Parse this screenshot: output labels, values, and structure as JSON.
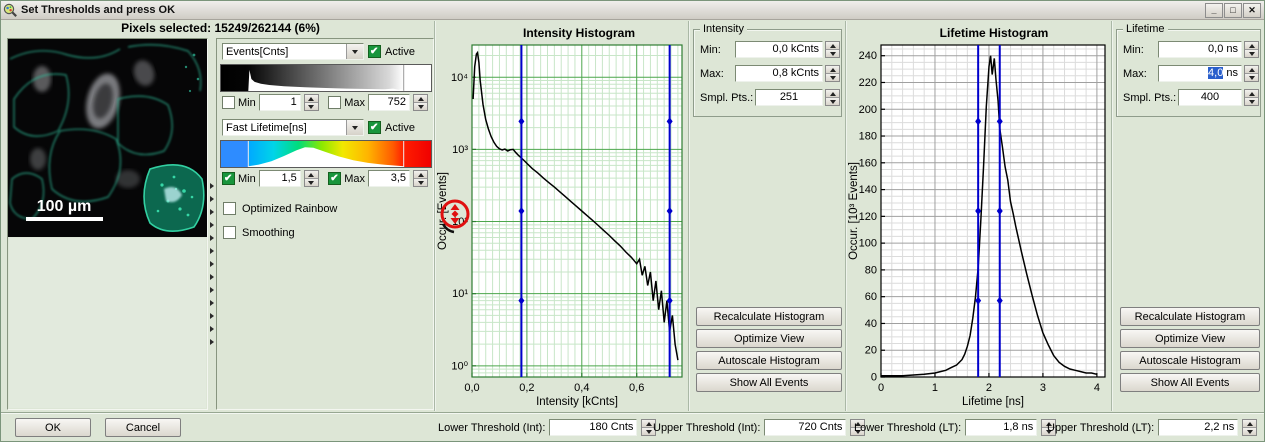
{
  "window": {
    "title": "Set Thresholds and press OK",
    "minimize_glyph": "_",
    "maximize_glyph": "□",
    "close_glyph": "✕"
  },
  "header": {
    "pixels_selected": "Pixels selected: 15249/262144 (6%)"
  },
  "image_panel": {
    "scale_bar_label": "100 µm"
  },
  "lut_controls": {
    "channel1": {
      "selector": "Events[Cnts]",
      "active_label": "Active",
      "active": true,
      "min_label": "Min",
      "min_checked": false,
      "min_value": "1",
      "max_label": "Max",
      "max_checked": false,
      "max_value": "752",
      "histogram": [
        [
          0.13,
          0.0
        ],
        [
          0.135,
          0.88
        ],
        [
          0.145,
          0.5
        ],
        [
          0.16,
          0.38
        ],
        [
          0.19,
          0.3
        ],
        [
          0.23,
          0.25
        ],
        [
          0.3,
          0.2
        ],
        [
          0.4,
          0.16
        ],
        [
          0.5,
          0.125
        ],
        [
          0.6,
          0.1
        ],
        [
          0.7,
          0.085
        ],
        [
          0.78,
          0.07
        ],
        [
          0.82,
          0.1
        ],
        [
          0.845,
          0.05
        ],
        [
          0.862,
          0.07
        ],
        [
          0.87,
          0.0
        ]
      ]
    },
    "channel2": {
      "selector": "Fast Lifetime[ns]",
      "active_label": "Active",
      "active": true,
      "min_label": "Min",
      "min_checked": true,
      "min_value": "1,5",
      "max_label": "Max",
      "max_checked": true,
      "max_value": "3,5",
      "histogram": [
        [
          0.13,
          0.03
        ],
        [
          0.18,
          0.1
        ],
        [
          0.24,
          0.24
        ],
        [
          0.3,
          0.46
        ],
        [
          0.36,
          0.7
        ],
        [
          0.4,
          0.82
        ],
        [
          0.44,
          0.8
        ],
        [
          0.5,
          0.62
        ],
        [
          0.56,
          0.44
        ],
        [
          0.63,
          0.28
        ],
        [
          0.7,
          0.17
        ],
        [
          0.78,
          0.09
        ],
        [
          0.87,
          0.03
        ]
      ]
    },
    "optimized_rainbow_label": "Optimized Rainbow",
    "optimized_rainbow_checked": false,
    "smoothing_label": "Smoothing",
    "smoothing_checked": false
  },
  "intensity_group": {
    "legend": "Intensity",
    "min_label": "Min:",
    "min_value": "0,0 kCnts",
    "max_label": "Max:",
    "max_value": "0,8 kCnts",
    "smpl_label": "Smpl. Pts.:",
    "smpl_value": "251"
  },
  "lifetime_group": {
    "legend": "Lifetime",
    "min_label": "Min:",
    "min_value": "0,0 ns",
    "max_label": "Max:",
    "max_value_selected": "4,0",
    "max_unit": " ns",
    "smpl_label": "Smpl. Pts.:",
    "smpl_value": "400"
  },
  "histogram_actions": [
    "Recalculate Histogram",
    "Optimize View",
    "Autoscale Histogram",
    "Show All Events"
  ],
  "footer": {
    "ok": "OK",
    "cancel": "Cancel",
    "fields": [
      {
        "label": "Lower Threshold (Int):",
        "value": "180 Cnts"
      },
      {
        "label": "Upper Threshold (Int):",
        "value": "720 Cnts"
      },
      {
        "label": "Lower Threshold (LT):",
        "value": "1,8 ns"
      },
      {
        "label": "Upper Threshold (LT):",
        "value": "2,2 ns"
      }
    ]
  },
  "chart_data": [
    {
      "id": "intensity",
      "type": "line",
      "title": "Intensity Histogram",
      "xlabel": "Intensity [kCnts]",
      "ylabel": "Occur. [Events]",
      "x_range": [
        0,
        0.765
      ],
      "y_scale": "log",
      "y_range": [
        0.7,
        28000
      ],
      "x_major_ticks": [
        0,
        0.2,
        0.4,
        0.6
      ],
      "x_tick_labels": [
        "0,0",
        "0,2",
        "0,4",
        "0,6"
      ],
      "x_minor_step": 0.025,
      "y_major_ticks": [
        1,
        10,
        100,
        1000,
        10000
      ],
      "y_tick_labels": [
        "10⁰",
        "10¹",
        "10²",
        "10³",
        "10⁴"
      ],
      "grid_major": "#4ca64c",
      "grid_minor": "#c8e6c8",
      "frame": "#2e7d32",
      "curve_color": "#000000",
      "thresholds": [
        0.18,
        0.72
      ],
      "threshold_color": "#0000cc",
      "x": [
        0.004,
        0.01,
        0.016,
        0.02,
        0.025,
        0.03,
        0.04,
        0.05,
        0.06,
        0.07,
        0.08,
        0.09,
        0.1,
        0.11,
        0.12,
        0.13,
        0.14,
        0.15,
        0.16,
        0.17,
        0.18,
        0.19,
        0.2,
        0.22,
        0.24,
        0.26,
        0.28,
        0.3,
        0.32,
        0.34,
        0.36,
        0.38,
        0.4,
        0.42,
        0.44,
        0.46,
        0.48,
        0.5,
        0.52,
        0.54,
        0.56,
        0.58,
        0.6,
        0.61,
        0.62,
        0.63,
        0.64,
        0.65,
        0.66,
        0.67,
        0.68,
        0.69,
        0.7,
        0.71,
        0.72,
        0.73,
        0.74,
        0.75
      ],
      "y": [
        5000,
        14000,
        21000,
        22000,
        16000,
        9000,
        4200,
        2600,
        1900,
        1500,
        1250,
        1100,
        1020,
        980,
        1010,
        950,
        990,
        1000,
        900,
        820,
        760,
        700,
        640,
        540,
        470,
        400,
        345,
        300,
        258,
        222,
        190,
        163,
        140,
        120,
        103,
        88,
        75,
        64,
        54,
        46,
        38,
        32,
        26,
        30,
        18,
        24,
        13,
        20,
        8,
        15,
        6,
        11,
        4,
        8,
        3,
        5,
        2,
        1.2
      ]
    },
    {
      "id": "lifetime",
      "type": "line",
      "title": "Lifetime Histogram",
      "xlabel": "Lifetime [ns]",
      "ylabel": "Occur. [10³ Events]",
      "x_range": [
        0,
        4.15
      ],
      "y_scale": "linear",
      "y_range": [
        0,
        248
      ],
      "x_major_ticks": [
        0,
        1,
        2,
        3,
        4
      ],
      "x_tick_labels": [
        "0",
        "1",
        "2",
        "3",
        "4"
      ],
      "x_minor_step": 0.2,
      "y_major_ticks": [
        0,
        20,
        40,
        60,
        80,
        100,
        120,
        140,
        160,
        180,
        200,
        220,
        240
      ],
      "y_tick_labels": [
        "0",
        "20",
        "40",
        "60",
        "80",
        "100",
        "120",
        "140",
        "160",
        "180",
        "200",
        "220",
        "240"
      ],
      "y_minor_step": 5,
      "grid_major": "#a0a0a0",
      "grid_minor": "#dcdcdc",
      "frame": "#000000",
      "curve_color": "#000000",
      "thresholds": [
        1.8,
        2.2
      ],
      "threshold_color": "#0000cc",
      "x": [
        0,
        0.4,
        0.8,
        1.0,
        1.1,
        1.2,
        1.3,
        1.4,
        1.5,
        1.55,
        1.6,
        1.65,
        1.7,
        1.75,
        1.8,
        1.85,
        1.9,
        1.95,
        2.0,
        2.03,
        2.06,
        2.1,
        2.13,
        2.17,
        2.2,
        2.25,
        2.3,
        2.35,
        2.4,
        2.45,
        2.5,
        2.55,
        2.6,
        2.7,
        2.8,
        2.9,
        3.0,
        3.1,
        3.2,
        3.3,
        3.4,
        3.5,
        3.6,
        3.7,
        3.8,
        3.9,
        4.0
      ],
      "y": [
        1,
        1,
        2,
        3,
        4,
        5,
        7,
        9,
        13,
        17,
        23,
        31,
        44,
        60,
        82,
        118,
        158,
        202,
        232,
        240,
        226,
        238,
        222,
        206,
        186,
        172,
        157,
        147,
        131,
        122,
        112,
        103,
        94,
        77,
        61,
        46,
        33,
        24,
        16,
        11,
        8,
        6,
        5,
        4,
        3,
        3,
        2
      ]
    }
  ]
}
